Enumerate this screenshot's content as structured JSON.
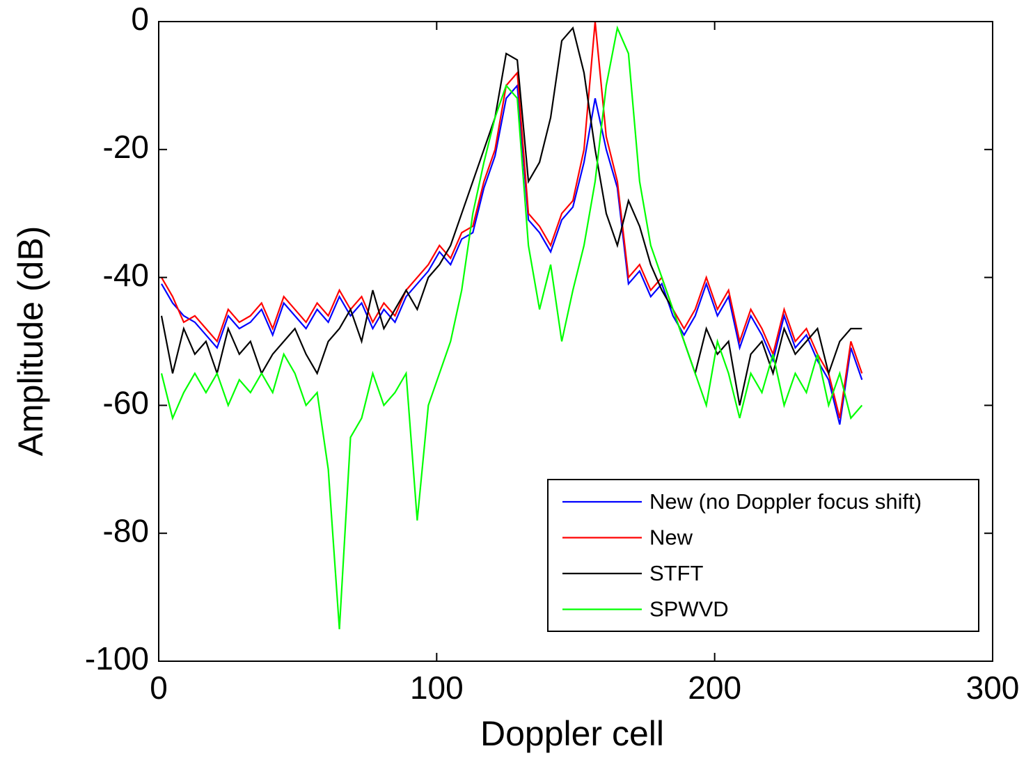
{
  "chart_data": {
    "type": "line",
    "xlabel": "Doppler cell",
    "ylabel": "Amplitude (dB)",
    "x": [
      1,
      5,
      9,
      13,
      17,
      21,
      25,
      29,
      33,
      37,
      41,
      45,
      49,
      53,
      57,
      61,
      65,
      69,
      73,
      77,
      81,
      85,
      89,
      93,
      97,
      101,
      105,
      109,
      113,
      117,
      121,
      125,
      129,
      133,
      137,
      141,
      145,
      149,
      153,
      157,
      161,
      165,
      169,
      173,
      177,
      181,
      185,
      189,
      193,
      197,
      201,
      205,
      209,
      213,
      217,
      221,
      225,
      229,
      233,
      237,
      241,
      245,
      249,
      253
    ],
    "series": [
      {
        "name": "New (no Doppler focus shift)",
        "color": "#0000ff",
        "values": [
          -41,
          -44,
          -46,
          -47,
          -49,
          -51,
          -46,
          -48,
          -47,
          -45,
          -49,
          -44,
          -46,
          -48,
          -45,
          -47,
          -43,
          -46,
          -44,
          -48,
          -45,
          -47,
          -43,
          -41,
          -39,
          -36,
          -38,
          -34,
          -33,
          -26,
          -21,
          -12,
          -10,
          -31,
          -33,
          -36,
          -31,
          -29,
          -22,
          -12,
          -20,
          -26,
          -41,
          -39,
          -43,
          -41,
          -46,
          -49,
          -46,
          -41,
          -46,
          -43,
          -51,
          -46,
          -49,
          -53,
          -46,
          -51,
          -49,
          -53,
          -56,
          -63,
          -51,
          -56
        ]
      },
      {
        "name": "New",
        "color": "#ff0000",
        "values": [
          -40,
          -43,
          -47,
          -46,
          -48,
          -50,
          -45,
          -47,
          -46,
          -44,
          -48,
          -43,
          -45,
          -47,
          -44,
          -46,
          -42,
          -45,
          -43,
          -47,
          -44,
          -46,
          -42,
          -40,
          -38,
          -35,
          -37,
          -33,
          -32,
          -25,
          -20,
          -10,
          -8,
          -30,
          -32,
          -35,
          -30,
          -28,
          -20,
          0,
          -18,
          -25,
          -40,
          -38,
          -42,
          -40,
          -45,
          -48,
          -45,
          -40,
          -45,
          -42,
          -50,
          -45,
          -48,
          -52,
          -45,
          -50,
          -48,
          -52,
          -55,
          -62,
          -50,
          -55
        ]
      },
      {
        "name": "STFT",
        "color": "#000000",
        "values": [
          -46,
          -55,
          -48,
          -52,
          -50,
          -55,
          -48,
          -52,
          -50,
          -55,
          -52,
          -50,
          -48,
          -52,
          -55,
          -50,
          -48,
          -45,
          -50,
          -42,
          -48,
          -45,
          -42,
          -45,
          -40,
          -38,
          -35,
          -30,
          -25,
          -20,
          -15,
          -5,
          -6,
          -25,
          -22,
          -15,
          -3,
          -1,
          -8,
          -20,
          -30,
          -35,
          -28,
          -32,
          -38,
          -42,
          -45,
          -50,
          -55,
          -48,
          -52,
          -50,
          -60,
          -52,
          -50,
          -55,
          -48,
          -52,
          -50,
          -48,
          -55,
          -50,
          -48,
          -48
        ]
      },
      {
        "name": "SPWVD",
        "color": "#00ff00",
        "values": [
          -55,
          -62,
          -58,
          -55,
          -58,
          -55,
          -60,
          -56,
          -58,
          -55,
          -58,
          -52,
          -55,
          -60,
          -58,
          -70,
          -95,
          -65,
          -62,
          -55,
          -60,
          -58,
          -55,
          -78,
          -60,
          -55,
          -50,
          -42,
          -30,
          -22,
          -15,
          -10,
          -12,
          -35,
          -45,
          -38,
          -50,
          -42,
          -35,
          -25,
          -10,
          -1,
          -5,
          -25,
          -35,
          -40,
          -45,
          -50,
          -55,
          -60,
          -50,
          -55,
          -62,
          -55,
          -58,
          -52,
          -60,
          -55,
          -58,
          -52,
          -60,
          -55,
          -62,
          -60
        ]
      }
    ],
    "xlim": [
      0,
      300
    ],
    "xticks": [
      0,
      100,
      200,
      300
    ],
    "ylim": [
      -100,
      0
    ],
    "yticks": [
      -100,
      -80,
      -60,
      -40,
      -20,
      0
    ],
    "legend": "lower right"
  }
}
